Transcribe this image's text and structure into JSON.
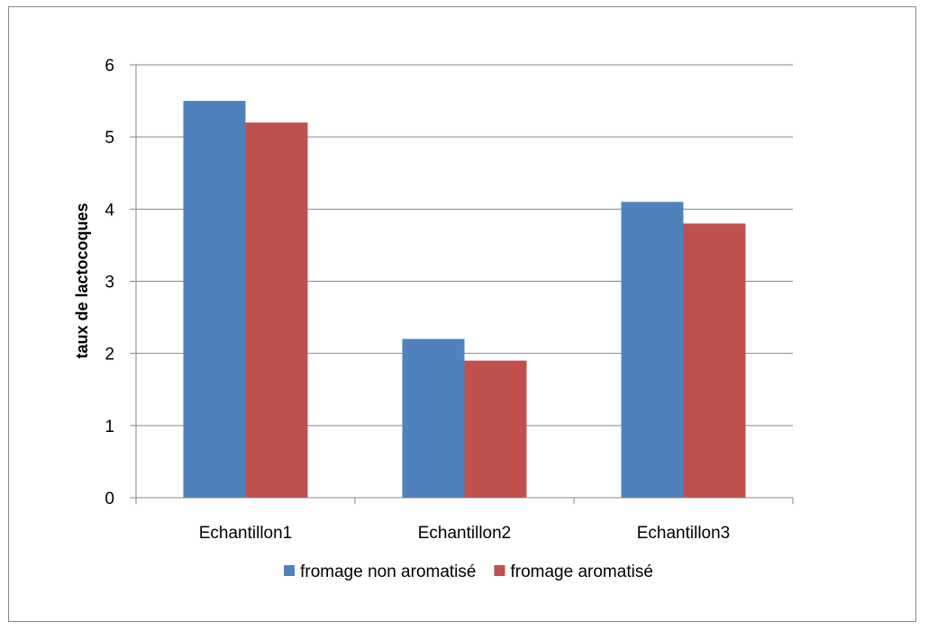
{
  "chart_data": {
    "type": "bar",
    "categories": [
      "Echantillon1",
      "Echantillon2",
      "Echantillon3"
    ],
    "series": [
      {
        "name": "fromage non aromatisé",
        "values": [
          5.5,
          2.2,
          4.1
        ],
        "color": "#4f81bd"
      },
      {
        "name": "fromage aromatisé",
        "values": [
          5.2,
          1.9,
          3.8
        ],
        "color": "#c0504d"
      }
    ],
    "title": "",
    "xlabel": "",
    "ylabel": "taux de lactocoques",
    "ylim": [
      0,
      6
    ],
    "yticks": [
      "0",
      "1",
      "2",
      "3",
      "4",
      "5",
      "6"
    ],
    "grid": true,
    "legend_position": "bottom"
  }
}
